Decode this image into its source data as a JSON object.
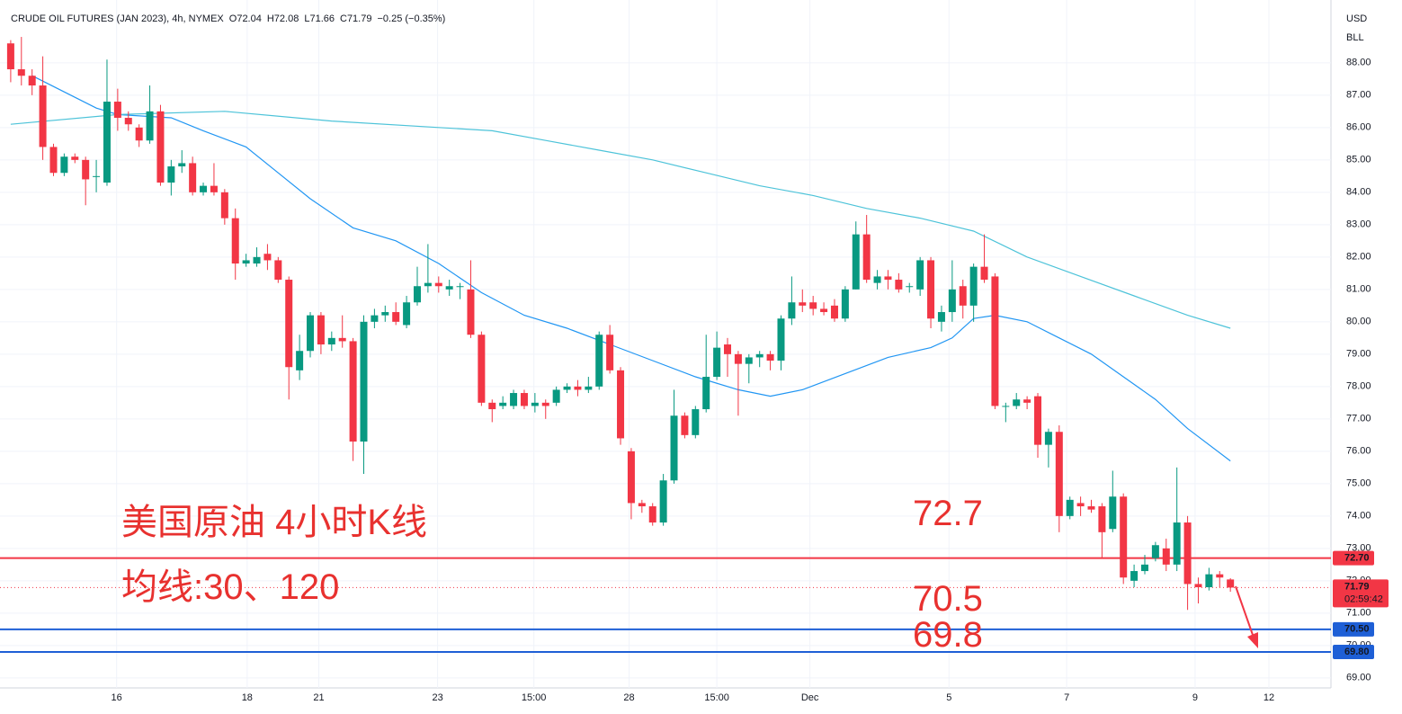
{
  "chart_data": {
    "type": "candlestick",
    "title": "CRUDE OIL FUTURES (JAN 2023), 4h, NYMEX",
    "ohlc_text": [
      "O72.04",
      "H72.08",
      "L71.66",
      "C71.79",
      "−0.25 (−0.35%)"
    ],
    "y_units": [
      "USD",
      "BLL"
    ],
    "up_color": "#089981",
    "down_color": "#f23645",
    "open": [
      88.6,
      87.8,
      87.6,
      87.3,
      85.4,
      84.6,
      85.1,
      85.0,
      84.5,
      84.3,
      86.8,
      86.3,
      86.0,
      85.6,
      86.5,
      84.3,
      84.8,
      84.9,
      84.0,
      84.2,
      84.0,
      83.2,
      81.8,
      81.8,
      82.1,
      81.9,
      81.3,
      78.5,
      79.1,
      80.2,
      79.3,
      79.5,
      79.4,
      76.3,
      80.0,
      80.2,
      80.3,
      79.9,
      80.6,
      81.1,
      81.2,
      81.0,
      81.1,
      81.0,
      79.6,
      77.5,
      77.4,
      77.4,
      77.8,
      77.4,
      77.5,
      77.5,
      77.9,
      78.0,
      77.9,
      78.0,
      79.6,
      78.5,
      76.0,
      74.4,
      74.3,
      73.8,
      75.1,
      77.1,
      76.5,
      77.3,
      78.3,
      79.3,
      79.0,
      78.7,
      78.9,
      79.0,
      78.8,
      80.1,
      80.6,
      80.6,
      80.4,
      80.5,
      80.1,
      81.0,
      82.7,
      81.2,
      81.4,
      81.3,
      81.1,
      81.0,
      81.9,
      80.0,
      80.3,
      81.1,
      80.5,
      81.7,
      81.4,
      77.4,
      77.4,
      77.6,
      77.7,
      76.2,
      76.6,
      74.0,
      74.4,
      74.3,
      74.3,
      73.6,
      74.6,
      72.0,
      72.3,
      72.7,
      73.0,
      72.5,
      73.8,
      71.9,
      71.8,
      72.2,
      72.04
    ],
    "high": [
      88.7,
      88.8,
      87.8,
      88.2,
      85.5,
      85.2,
      85.2,
      85.1,
      85.0,
      88.1,
      87.2,
      86.5,
      86.1,
      87.3,
      86.7,
      85.0,
      85.3,
      85.1,
      84.3,
      84.9,
      84.1,
      83.5,
      82.1,
      82.3,
      82.4,
      82.0,
      81.4,
      79.6,
      80.3,
      80.3,
      79.7,
      80.2,
      79.5,
      80.2,
      80.4,
      80.5,
      80.6,
      80.8,
      81.7,
      82.4,
      81.4,
      81.3,
      81.2,
      81.9,
      79.7,
      77.6,
      77.7,
      77.9,
      77.9,
      77.8,
      77.6,
      78.0,
      78.1,
      78.2,
      78.3,
      79.7,
      79.9,
      78.6,
      76.1,
      74.5,
      74.4,
      75.3,
      77.9,
      77.2,
      77.4,
      79.6,
      79.7,
      79.5,
      79.1,
      79.0,
      79.1,
      79.1,
      80.2,
      81.4,
      81.0,
      80.8,
      80.6,
      80.7,
      81.1,
      83.1,
      83.3,
      81.6,
      81.6,
      81.5,
      81.2,
      82.0,
      82.0,
      80.5,
      81.9,
      81.3,
      81.8,
      82.7,
      81.5,
      77.5,
      77.8,
      77.7,
      77.8,
      76.7,
      76.8,
      74.6,
      74.6,
      74.5,
      74.4,
      75.4,
      74.7,
      72.5,
      72.8,
      73.2,
      73.3,
      75.5,
      74.0,
      72.1,
      72.4,
      72.3,
      72.08
    ],
    "low": [
      87.4,
      87.3,
      87.0,
      85.0,
      84.5,
      84.5,
      84.9,
      83.6,
      84.0,
      84.2,
      85.9,
      85.9,
      85.4,
      85.5,
      84.2,
      83.9,
      84.6,
      83.9,
      83.9,
      83.9,
      83.0,
      81.3,
      81.7,
      81.7,
      81.6,
      81.2,
      77.6,
      78.2,
      78.9,
      79.0,
      79.1,
      79.2,
      75.7,
      75.3,
      79.8,
      80.0,
      79.9,
      79.8,
      80.5,
      80.9,
      80.9,
      80.8,
      80.7,
      79.5,
      77.4,
      76.9,
      77.3,
      77.3,
      77.3,
      77.2,
      77.0,
      77.4,
      77.8,
      77.7,
      77.8,
      77.9,
      78.4,
      76.2,
      73.9,
      74.1,
      73.7,
      73.7,
      75.0,
      76.4,
      76.4,
      77.2,
      78.2,
      78.3,
      77.1,
      78.1,
      78.6,
      78.5,
      78.5,
      79.9,
      80.3,
      80.2,
      80.2,
      80.0,
      80.0,
      81.0,
      81.2,
      81.0,
      81.0,
      80.9,
      80.9,
      80.8,
      79.8,
      79.7,
      80.0,
      80.1,
      80.0,
      81.2,
      77.3,
      76.9,
      77.3,
      77.3,
      75.8,
      75.5,
      73.5,
      73.9,
      74.0,
      74.1,
      72.7,
      73.5,
      71.9,
      71.8,
      72.2,
      72.6,
      72.3,
      72.3,
      71.1,
      71.3,
      71.7,
      71.8,
      71.66
    ],
    "close": [
      87.8,
      87.6,
      87.3,
      85.4,
      84.6,
      85.1,
      85.0,
      84.4,
      84.5,
      86.8,
      86.3,
      86.1,
      85.6,
      86.5,
      84.3,
      84.8,
      84.9,
      84.0,
      84.2,
      84.0,
      83.2,
      81.8,
      81.9,
      82.0,
      81.9,
      81.3,
      78.6,
      79.1,
      80.2,
      79.3,
      79.5,
      79.4,
      76.3,
      80.0,
      80.2,
      80.3,
      80.0,
      80.6,
      81.1,
      81.2,
      81.1,
      81.1,
      81.1,
      79.6,
      77.5,
      77.3,
      77.5,
      77.8,
      77.4,
      77.5,
      77.4,
      77.9,
      78.0,
      77.9,
      78.0,
      79.6,
      78.5,
      76.4,
      74.4,
      74.3,
      73.8,
      75.1,
      77.1,
      76.5,
      77.3,
      78.3,
      79.2,
      79.0,
      78.7,
      78.9,
      79.0,
      78.8,
      80.1,
      80.6,
      80.5,
      80.4,
      80.3,
      80.1,
      81.0,
      82.7,
      81.3,
      81.4,
      81.3,
      81.0,
      81.1,
      81.9,
      80.1,
      80.3,
      81.0,
      80.5,
      81.7,
      81.3,
      77.4,
      77.4,
      77.6,
      77.5,
      76.2,
      76.6,
      74.0,
      74.5,
      74.3,
      74.2,
      73.5,
      74.6,
      72.1,
      72.3,
      72.5,
      73.1,
      72.5,
      73.8,
      71.9,
      71.8,
      72.2,
      72.1,
      71.79
    ],
    "moving_averages": [
      {
        "color": "#2196f3",
        "x": [
          2,
          5,
          8,
          10,
          15,
          18,
          22,
          25,
          28,
          32,
          36,
          40,
          44,
          48,
          52,
          56,
          60,
          64,
          68,
          71,
          74,
          78,
          82,
          86,
          88,
          90,
          92,
          95,
          98,
          101,
          104,
          107,
          110,
          114
        ],
        "values": [
          87.6,
          87.1,
          86.6,
          86.4,
          86.3,
          85.9,
          85.4,
          84.6,
          83.8,
          82.9,
          82.5,
          81.8,
          80.9,
          80.2,
          79.8,
          79.3,
          78.8,
          78.3,
          77.9,
          77.7,
          77.9,
          78.4,
          78.9,
          79.2,
          79.5,
          80.1,
          80.2,
          80.0,
          79.5,
          79.0,
          78.3,
          77.6,
          76.7,
          75.7
        ]
      },
      {
        "color": "#4dc3d9",
        "x": [
          0,
          10,
          20,
          30,
          40,
          45,
          50,
          55,
          60,
          65,
          70,
          75,
          80,
          85,
          90,
          95,
          100,
          105,
          110,
          114
        ],
        "values": [
          86.1,
          86.4,
          86.5,
          86.2,
          86.0,
          85.9,
          85.6,
          85.3,
          85.0,
          84.6,
          84.2,
          83.9,
          83.5,
          83.2,
          82.8,
          82.0,
          81.4,
          80.8,
          80.2,
          79.8
        ]
      }
    ],
    "levels": [
      {
        "value": 72.7,
        "label": "72.70",
        "color": "#f23645"
      },
      {
        "value": 70.5,
        "label": "70.50",
        "color": "#1e5fd6"
      },
      {
        "value": 69.8,
        "label": "69.80",
        "color": "#1e5fd6"
      }
    ],
    "last_price": {
      "value": 71.79,
      "label": "71.79",
      "countdown": "02:59:42"
    },
    "annotations": [
      "美国原油 4小时K线",
      "均线:30、120",
      "72.7",
      "70.5",
      "69.8"
    ],
    "xlim": [
      -1,
      123.4
    ],
    "ylim": [
      68.69,
      89.94
    ],
    "xticks": [
      {
        "value": 9.9,
        "label": "16"
      },
      {
        "value": 22.1,
        "label": "18"
      },
      {
        "value": 28.8,
        "label": "21"
      },
      {
        "value": 39.9,
        "label": "23"
      },
      {
        "value": 48.9,
        "label": "15:00"
      },
      {
        "value": 57.8,
        "label": "28"
      },
      {
        "value": 66,
        "label": "15:00"
      },
      {
        "value": 74.7,
        "label": "Dec"
      },
      {
        "value": 87.7,
        "label": "5"
      },
      {
        "value": 98.7,
        "label": "7"
      },
      {
        "value": 110.7,
        "label": "9"
      },
      {
        "value": 117.6,
        "label": "12"
      }
    ],
    "yticks": [
      {
        "value": 69,
        "label": "69.00"
      },
      {
        "value": 70,
        "label": "70.00"
      },
      {
        "value": 71,
        "label": "71.00"
      },
      {
        "value": 72,
        "label": "72.00"
      },
      {
        "value": 73,
        "label": "73.00"
      },
      {
        "value": 74,
        "label": "74.00"
      },
      {
        "value": 75,
        "label": "75.00"
      },
      {
        "value": 76,
        "label": "76.00"
      },
      {
        "value": 77,
        "label": "77.00"
      },
      {
        "value": 78,
        "label": "78.00"
      },
      {
        "value": 79,
        "label": "79.00"
      },
      {
        "value": 80,
        "label": "80.00"
      },
      {
        "value": 81,
        "label": "81.00"
      },
      {
        "value": 82,
        "label": "82.00"
      },
      {
        "value": 83,
        "label": "83.00"
      },
      {
        "value": 84,
        "label": "84.00"
      },
      {
        "value": 85,
        "label": "85.00"
      },
      {
        "value": 86,
        "label": "86.00"
      },
      {
        "value": 87,
        "label": "87.00"
      },
      {
        "value": 88,
        "label": "88.00"
      }
    ],
    "grid": true
  }
}
